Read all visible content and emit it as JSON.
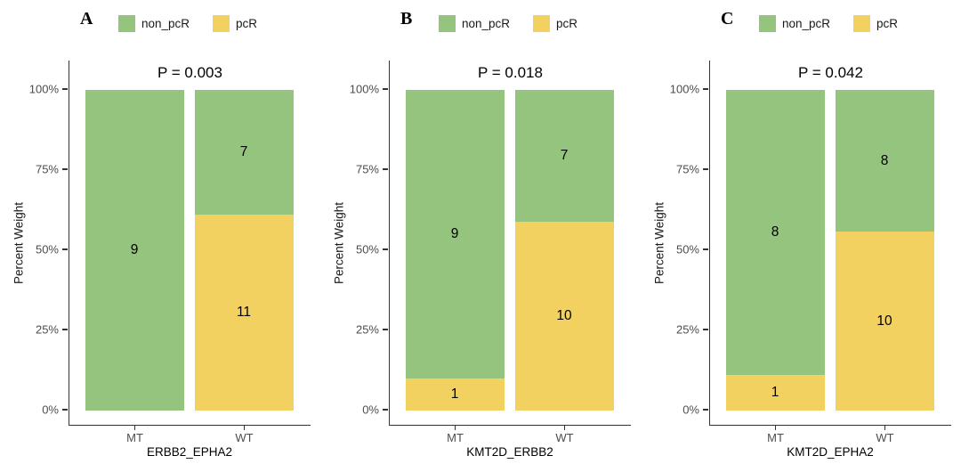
{
  "figure": {
    "background": "#ffffff",
    "axis_color": "#333333",
    "tick_label_color": "#4d4d4d",
    "ylabel": "Percent Weight",
    "yticks": [
      {
        "label": "0%",
        "value": 0
      },
      {
        "label": "25%",
        "value": 25
      },
      {
        "label": "50%",
        "value": 50
      },
      {
        "label": "75%",
        "value": 75
      },
      {
        "label": "100%",
        "value": 100
      }
    ],
    "legend": [
      {
        "label": "non_pcR",
        "color": "#94c47d"
      },
      {
        "label": "pcR",
        "color": "#f2d160"
      }
    ],
    "legend_position": "top"
  },
  "chart_data": [
    {
      "type": "bar",
      "stacked": true,
      "normalized": "percent",
      "grid": false,
      "panel": "A",
      "title": "P = 0.003",
      "xlabel": "ERBB2_EPHA2",
      "ylabel": "Percent Weight",
      "ylim": [
        0,
        100
      ],
      "categories": [
        "MT",
        "WT"
      ],
      "stack_order_bottom_to_top": [
        "pcR",
        "non_pcR"
      ],
      "series": [
        {
          "name": "non_pcR",
          "color": "#94c47d",
          "counts": [
            9,
            7
          ],
          "percents": [
            100,
            38.89
          ]
        },
        {
          "name": "pcR",
          "color": "#f2d160",
          "counts": [
            0,
            11
          ],
          "percents": [
            0,
            61.11
          ]
        }
      ]
    },
    {
      "type": "bar",
      "stacked": true,
      "normalized": "percent",
      "grid": false,
      "panel": "B",
      "title": "P = 0.018",
      "xlabel": "KMT2D_ERBB2",
      "ylabel": "Percent Weight",
      "ylim": [
        0,
        100
      ],
      "categories": [
        "MT",
        "WT"
      ],
      "stack_order_bottom_to_top": [
        "pcR",
        "non_pcR"
      ],
      "series": [
        {
          "name": "non_pcR",
          "color": "#94c47d",
          "counts": [
            9,
            7
          ],
          "percents": [
            90,
            41.18
          ]
        },
        {
          "name": "pcR",
          "color": "#f2d160",
          "counts": [
            1,
            10
          ],
          "percents": [
            10,
            58.82
          ]
        }
      ]
    },
    {
      "type": "bar",
      "stacked": true,
      "normalized": "percent",
      "grid": false,
      "panel": "C",
      "title": "P = 0.042",
      "xlabel": "KMT2D_EPHA2",
      "ylabel": "Percent Weight",
      "ylim": [
        0,
        100
      ],
      "categories": [
        "MT",
        "WT"
      ],
      "stack_order_bottom_to_top": [
        "pcR",
        "non_pcR"
      ],
      "series": [
        {
          "name": "non_pcR",
          "color": "#94c47d",
          "counts": [
            8,
            8
          ],
          "percents": [
            88.89,
            44.44
          ]
        },
        {
          "name": "pcR",
          "color": "#f2d160",
          "counts": [
            1,
            10
          ],
          "percents": [
            11.11,
            55.56
          ]
        }
      ]
    }
  ]
}
